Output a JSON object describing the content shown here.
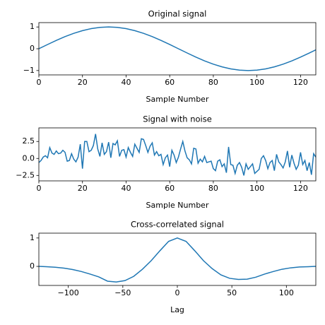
{
  "chart_data": [
    {
      "type": "line",
      "title": "Original signal",
      "xlabel": "Sample Number",
      "x": [
        0,
        4,
        8,
        12,
        16,
        20,
        24,
        28,
        32,
        36,
        40,
        44,
        48,
        52,
        56,
        60,
        64,
        68,
        72,
        76,
        80,
        84,
        88,
        92,
        96,
        100,
        104,
        108,
        112,
        116,
        120,
        124,
        127
      ],
      "series": [
        {
          "color": "#1f77b4",
          "values": [
            0,
            0.195,
            0.383,
            0.556,
            0.707,
            0.831,
            0.924,
            0.981,
            1,
            0.981,
            0.924,
            0.831,
            0.707,
            0.556,
            0.383,
            0.195,
            0,
            -0.195,
            -0.383,
            -0.556,
            -0.707,
            -0.831,
            -0.924,
            -0.981,
            -1,
            -0.981,
            -0.924,
            -0.831,
            -0.707,
            -0.556,
            -0.383,
            -0.195,
            -0.049
          ]
        }
      ],
      "xlim": [
        0,
        127
      ],
      "ylim": [
        -1.2,
        1.2
      ],
      "xticks": [
        0,
        20,
        40,
        60,
        80,
        100,
        120
      ],
      "yticks": [
        {
          "value": -1,
          "label": "−1"
        },
        0,
        1
      ]
    },
    {
      "type": "line",
      "title": "Signal with noise",
      "xlabel": "Sample Number",
      "x": [
        0,
        1,
        2,
        3,
        4,
        5,
        6,
        7,
        8,
        9,
        10,
        11,
        12,
        13,
        14,
        15,
        16,
        17,
        18,
        19,
        20,
        21,
        22,
        23,
        24,
        25,
        26,
        27,
        28,
        29,
        30,
        31,
        32,
        33,
        34,
        35,
        36,
        37,
        38,
        39,
        40,
        41,
        42,
        43,
        44,
        45,
        46,
        47,
        48,
        49,
        50,
        51,
        52,
        53,
        54,
        55,
        56,
        57,
        58,
        59,
        60,
        61,
        62,
        63,
        64,
        65,
        66,
        67,
        68,
        69,
        70,
        71,
        72,
        73,
        74,
        75,
        76,
        77,
        78,
        79,
        80,
        81,
        82,
        83,
        84,
        85,
        86,
        87,
        88,
        89,
        90,
        91,
        92,
        93,
        94,
        95,
        96,
        97,
        98,
        99,
        100,
        101,
        102,
        103,
        104,
        105,
        106,
        107,
        108,
        109,
        110,
        111,
        112,
        113,
        114,
        115,
        116,
        117,
        118,
        119,
        120,
        121,
        122,
        123,
        124,
        125,
        126,
        127
      ],
      "series": [
        {
          "color": "#1f77b4",
          "values": [
            -0.6,
            -0.3,
            0.2,
            0.4,
            0.1,
            1.6,
            0.8,
            0.6,
            1.1,
            0.7,
            0.8,
            1.2,
            0.9,
            -0.4,
            -0.3,
            0.7,
            -0.1,
            -0.5,
            0.2,
            2.1,
            -1.5,
            2.5,
            2.5,
            1.0,
            1.2,
            1.9,
            3.6,
            1.4,
            0.3,
            2.3,
            0.6,
            1.0,
            2.4,
            0.1,
            2.2,
            2.0,
            2.6,
            0.3,
            1.2,
            1.3,
            0.2,
            1.6,
            0.9,
            0.3,
            2.1,
            1.5,
            0.9,
            2.9,
            2.8,
            1.9,
            0.9,
            1.8,
            2.3,
            0.5,
            1.0,
            0.4,
            0.6,
            -0.9,
            0.1,
            0.5,
            -1.2,
            1.2,
            0.5,
            -0.6,
            0.2,
            1.4,
            2.5,
            1.1,
            0.1,
            -0.2,
            -0.8,
            1.5,
            1.4,
            -0.7,
            -0.1,
            -0.5,
            0.3,
            -0.6,
            -0.5,
            -0.4,
            -1.5,
            -1.8,
            -0.4,
            -0.2,
            -1.2,
            -0.8,
            -2.1,
            1.7,
            -0.9,
            -1.0,
            -2.2,
            -1.0,
            -0.6,
            -1.3,
            -2.5,
            -0.8,
            -1.6,
            -1.2,
            -0.8,
            -2.2,
            -1.9,
            -1.6,
            0.0,
            0.4,
            -0.3,
            -1.5,
            -0.6,
            -0.3,
            -1.8,
            0.6,
            -0.5,
            -0.9,
            -1.4,
            -0.5,
            1.1,
            -1.3,
            0.5,
            -0.7,
            -1.6,
            -1.0,
            0.9,
            -0.9,
            -0.3,
            -1.8,
            -0.6,
            -2.4,
            0.7,
            0.2
          ]
        }
      ],
      "xlim": [
        0,
        127
      ],
      "ylim": [
        -3.3,
        4.5
      ],
      "xticks": [
        0,
        20,
        40,
        60,
        80,
        100,
        120
      ],
      "yticks": [
        {
          "value": -2.5,
          "label": "−2.5"
        },
        {
          "value": 0,
          "label": "0.0"
        },
        2.5
      ]
    },
    {
      "type": "line",
      "title": "Cross-correlated signal",
      "xlabel": "Lag",
      "x": [
        -127,
        -120,
        -112,
        -104,
        -96,
        -88,
        -80,
        -72,
        -64,
        -56,
        -48,
        -40,
        -32,
        -24,
        -16,
        -8,
        0,
        8,
        16,
        24,
        32,
        40,
        48,
        56,
        64,
        72,
        80,
        88,
        96,
        104,
        112,
        120,
        127
      ],
      "series": [
        {
          "color": "#1f77b4",
          "values": [
            0,
            -0.01,
            -0.03,
            -0.06,
            -0.11,
            -0.18,
            -0.27,
            -0.37,
            -0.52,
            -0.55,
            -0.5,
            -0.35,
            -0.1,
            0.2,
            0.55,
            0.88,
            1,
            0.88,
            0.55,
            0.2,
            -0.08,
            -0.3,
            -0.42,
            -0.46,
            -0.45,
            -0.38,
            -0.27,
            -0.18,
            -0.1,
            -0.05,
            -0.02,
            -0.01,
            0
          ]
        }
      ],
      "xlim": [
        -127,
        127
      ],
      "ylim": [
        -0.67,
        1.17
      ],
      "xticks": [
        {
          "value": -100,
          "label": "−100"
        },
        {
          "value": -50,
          "label": "−50"
        },
        0,
        50,
        100
      ],
      "yticks": [
        0,
        1
      ]
    }
  ]
}
